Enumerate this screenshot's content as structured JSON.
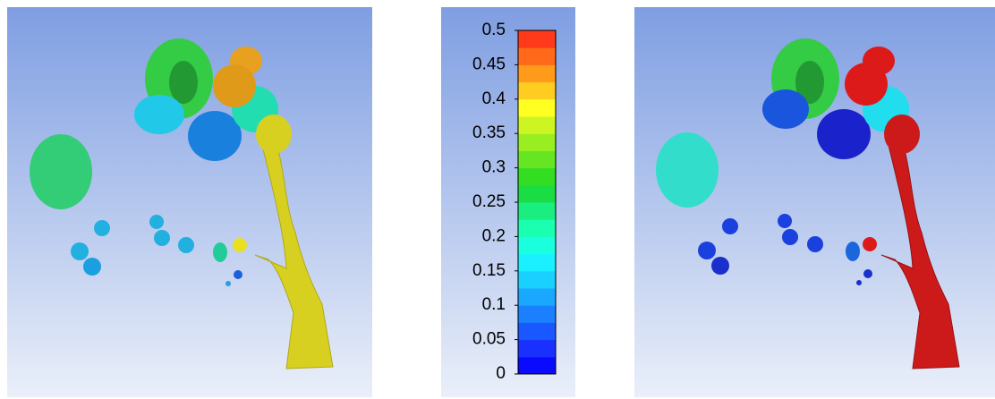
{
  "colorbar": {
    "lim": [
      0,
      0.5
    ],
    "ticks": [
      0,
      0.05,
      0.1,
      0.15,
      0.2,
      0.25,
      0.3,
      0.35,
      0.4,
      0.45,
      0.5
    ],
    "colors": [
      "#0a0aff",
      "#1a30ff",
      "#1a58ff",
      "#1a80ff",
      "#1aa8ff",
      "#1ad0ff",
      "#1af0ff",
      "#1affdd",
      "#1affb0",
      "#1aee80",
      "#1add44",
      "#33dd22",
      "#66e622",
      "#99ee22",
      "#ccf522",
      "#ffff22",
      "#ffcc22",
      "#ff9a1a",
      "#ff6a1a",
      "#ff3a1a"
    ]
  }
}
